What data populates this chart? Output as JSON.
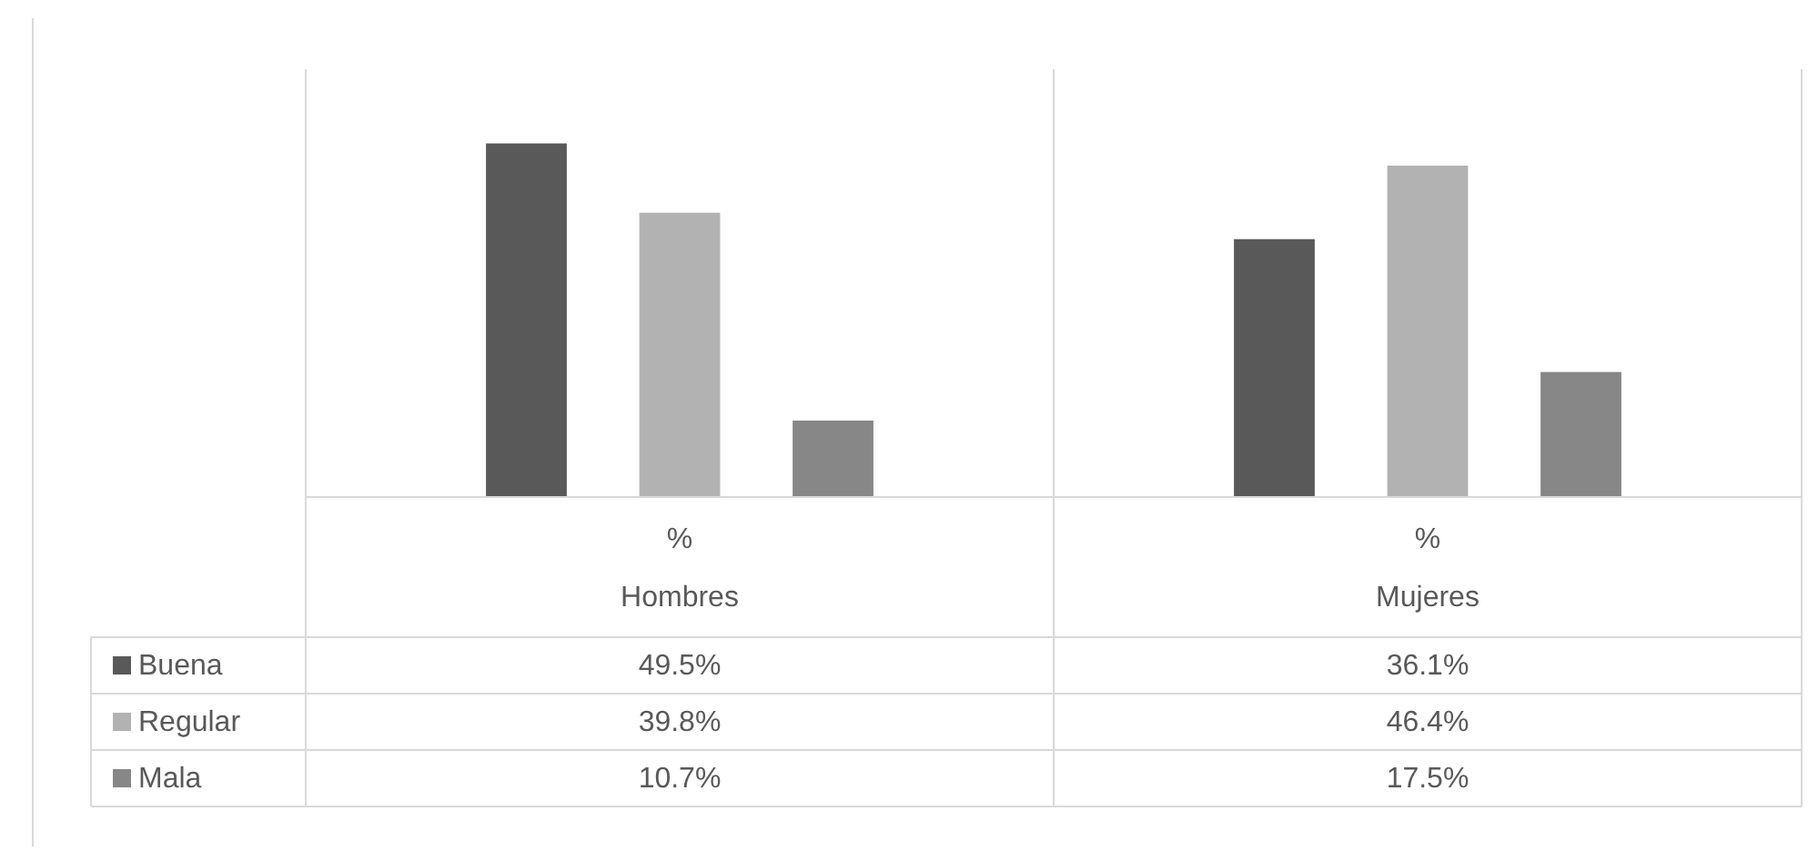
{
  "chart_data": {
    "type": "bar",
    "categories": [
      "%\nHombres",
      "%\nMujeres"
    ],
    "series": [
      {
        "name": "Buena",
        "color": "#595959",
        "values": [
          49.5,
          36.1
        ],
        "value_labels": [
          "49.5%",
          "36.1%"
        ]
      },
      {
        "name": "Regular",
        "color": "#b2b2b2",
        "values": [
          39.8,
          46.4
        ],
        "value_labels": [
          "39.8%",
          "46.4%"
        ]
      },
      {
        "name": "Mala",
        "color": "#878787",
        "values": [
          10.7,
          17.5
        ],
        "value_labels": [
          "10.7%",
          "17.5%"
        ]
      }
    ],
    "grid": "x",
    "legend": "bottom left"
  }
}
